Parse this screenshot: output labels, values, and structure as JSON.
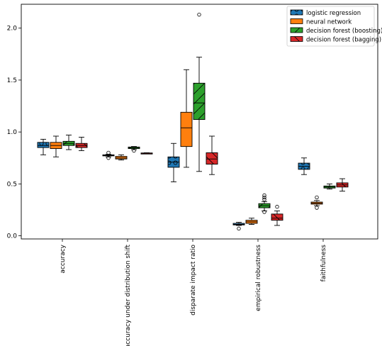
{
  "chart_data": {
    "type": "boxplot",
    "title": "",
    "xlabel": "",
    "ylabel": "",
    "ylim": [
      -0.03,
      2.23
    ],
    "yticks": [
      "0.0",
      "0.5",
      "1.0",
      "1.5",
      "2.0"
    ],
    "categories": [
      "accuracy",
      "accuracy under distribution shift",
      "disparate impact ratio",
      "empirical robustness",
      "faithfulness"
    ],
    "legend_position": "top-right",
    "series": [
      {
        "name": "logistic regression",
        "color": "#1f77b4",
        "hatch": "circles",
        "boxes": [
          {
            "whislo": 0.78,
            "q1": 0.85,
            "med": 0.87,
            "q3": 0.9,
            "whishi": 0.93,
            "fliers": []
          },
          {
            "whislo": 0.76,
            "q1": 0.77,
            "med": 0.775,
            "q3": 0.78,
            "whishi": 0.785,
            "fliers": [
              0.75,
              0.8
            ]
          },
          {
            "whislo": 0.52,
            "q1": 0.66,
            "med": 0.71,
            "q3": 0.76,
            "whishi": 0.89,
            "fliers": []
          },
          {
            "whislo": 0.1,
            "q1": 0.105,
            "med": 0.11,
            "q3": 0.12,
            "whishi": 0.13,
            "fliers": [
              0.07
            ]
          },
          {
            "whislo": 0.59,
            "q1": 0.64,
            "med": 0.67,
            "q3": 0.7,
            "whishi": 0.75,
            "fliers": []
          }
        ]
      },
      {
        "name": "neural network",
        "color": "#ff7f0e",
        "hatch": "none",
        "boxes": [
          {
            "whislo": 0.76,
            "q1": 0.84,
            "med": 0.87,
            "q3": 0.9,
            "whishi": 0.96,
            "fliers": []
          },
          {
            "whislo": 0.73,
            "q1": 0.74,
            "med": 0.75,
            "q3": 0.765,
            "whishi": 0.78,
            "fliers": []
          },
          {
            "whislo": 0.66,
            "q1": 0.86,
            "med": 1.04,
            "q3": 1.19,
            "whishi": 1.6,
            "fliers": []
          },
          {
            "whislo": 0.11,
            "q1": 0.12,
            "med": 0.135,
            "q3": 0.15,
            "whishi": 0.17,
            "fliers": []
          },
          {
            "whislo": 0.29,
            "q1": 0.305,
            "med": 0.315,
            "q3": 0.325,
            "whishi": 0.34,
            "fliers": [
              0.27,
              0.37
            ]
          }
        ]
      },
      {
        "name": "decision forest (boosting)",
        "color": "#2ca02c",
        "hatch": "diagonal",
        "boxes": [
          {
            "whislo": 0.83,
            "q1": 0.87,
            "med": 0.89,
            "q3": 0.91,
            "whishi": 0.97,
            "fliers": []
          },
          {
            "whislo": 0.83,
            "q1": 0.84,
            "med": 0.85,
            "q3": 0.855,
            "whishi": 0.86,
            "fliers": [
              0.82
            ]
          },
          {
            "whislo": 0.62,
            "q1": 1.12,
            "med": 1.28,
            "q3": 1.47,
            "whishi": 1.72,
            "fliers": [
              2.13
            ]
          },
          {
            "whislo": 0.24,
            "q1": 0.27,
            "med": 0.29,
            "q3": 0.31,
            "whishi": 0.33,
            "fliers": [
              0.23,
              0.35,
              0.37,
              0.39
            ]
          },
          {
            "whislo": 0.45,
            "q1": 0.46,
            "med": 0.47,
            "q3": 0.48,
            "whishi": 0.5,
            "fliers": []
          }
        ]
      },
      {
        "name": "decision forest (bagging)",
        "color": "#d62728",
        "hatch": "backslash",
        "boxes": [
          {
            "whislo": 0.82,
            "q1": 0.85,
            "med": 0.87,
            "q3": 0.89,
            "whishi": 0.95,
            "fliers": []
          },
          {
            "whislo": 0.79,
            "q1": 0.792,
            "med": 0.795,
            "q3": 0.798,
            "whishi": 0.8,
            "fliers": []
          },
          {
            "whislo": 0.59,
            "q1": 0.69,
            "med": 0.74,
            "q3": 0.8,
            "whishi": 0.96,
            "fliers": []
          },
          {
            "whislo": 0.1,
            "q1": 0.15,
            "med": 0.17,
            "q3": 0.21,
            "whishi": 0.24,
            "fliers": [
              0.28
            ]
          },
          {
            "whislo": 0.43,
            "q1": 0.47,
            "med": 0.49,
            "q3": 0.51,
            "whishi": 0.55,
            "fliers": []
          }
        ]
      }
    ]
  }
}
